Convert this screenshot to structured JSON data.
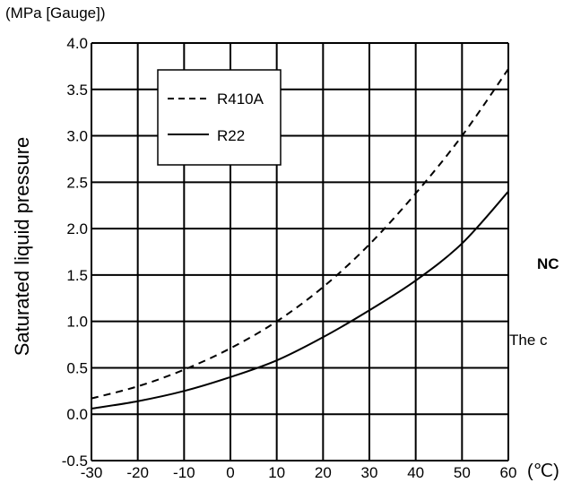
{
  "chart_data": {
    "type": "line",
    "y_unit_label": "(MPa [Gauge])",
    "ylabel": "Saturated liquid pressure",
    "x_unit_label": "(℃)",
    "xlim": [
      -30,
      60
    ],
    "ylim": [
      -0.5,
      4.0
    ],
    "x_ticks": [
      "-30",
      "-20",
      "-10",
      "0",
      "10",
      "20",
      "30",
      "40",
      "50",
      "60"
    ],
    "y_ticks": [
      "4.0",
      "3.5",
      "3.0",
      "2.5",
      "2.0",
      "1.5",
      "1.0",
      "0.5",
      "0.0",
      "-0.5"
    ],
    "grid": true,
    "legend_position": "top-left",
    "series": [
      {
        "name": "R410A",
        "style": "dashed",
        "color": "#000000",
        "x": [
          -30,
          -20,
          -10,
          0,
          10,
          20,
          30,
          40,
          50,
          60
        ],
        "y": [
          0.17,
          0.3,
          0.48,
          0.71,
          1.0,
          1.37,
          1.83,
          2.38,
          3.0,
          3.72
        ]
      },
      {
        "name": "R22",
        "style": "solid",
        "color": "#000000",
        "x": [
          -30,
          -20,
          -10,
          0,
          10,
          20,
          30,
          40,
          50,
          60
        ],
        "y": [
          0.06,
          0.14,
          0.25,
          0.4,
          0.58,
          0.83,
          1.12,
          1.44,
          1.84,
          2.4
        ]
      }
    ]
  },
  "side_text": {
    "line1": "NC",
    "line2": "The c"
  }
}
